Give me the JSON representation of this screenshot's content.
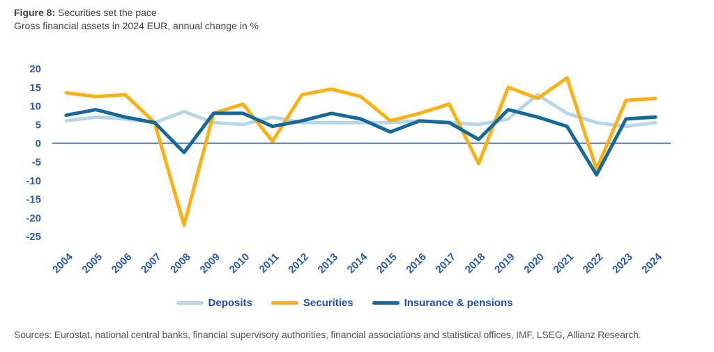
{
  "header": {
    "figure_label": "Figure 8:",
    "title": "Securities set the pace",
    "subtitle": "Gross financial assets in 2024 EUR, annual change in %"
  },
  "footer": {
    "sources": "Sources: Eurostat, national central banks, financial supervisory authorities, financial associations and statistical offices, IMF, LSEG, Allianz Research."
  },
  "chart_data": {
    "type": "line",
    "title": "Figure 8: Securities set the pace",
    "subtitle": "Gross financial assets in 2024 EUR, annual change in %",
    "categories": [
      2004,
      2005,
      2006,
      2007,
      2008,
      2009,
      2010,
      2011,
      2012,
      2013,
      2014,
      2015,
      2016,
      2017,
      2018,
      2019,
      2020,
      2021,
      2022,
      2023,
      2024
    ],
    "series": [
      {
        "name": "Deposits",
        "color": "#B7D7E6",
        "values": [
          6,
          7,
          6.5,
          5.5,
          8.5,
          5.5,
          5,
          7,
          5.5,
          5.5,
          5.5,
          5.5,
          6,
          5.5,
          5,
          6.5,
          13,
          8,
          5.5,
          4.5,
          5.5
        ]
      },
      {
        "name": "Securities",
        "color": "#F9B114",
        "values": [
          13.5,
          12.5,
          13,
          5.5,
          -22,
          8,
          10.5,
          0.5,
          13,
          14.5,
          12.5,
          6,
          8,
          10.5,
          -5.5,
          15,
          12,
          17.5,
          -7,
          11.5,
          12
        ]
      },
      {
        "name": "Insurance & pensions",
        "color": "#16689D",
        "values": [
          7.5,
          9,
          7,
          5.5,
          -2.5,
          8,
          8,
          4.5,
          6,
          8,
          6.5,
          3,
          6,
          5.5,
          1,
          9,
          7,
          4.5,
          -8.5,
          6.5,
          7
        ]
      }
    ],
    "xlabel": "",
    "ylabel": "",
    "ylim": [
      -25,
      20
    ],
    "y_ticks": [
      20,
      15,
      10,
      5,
      0,
      -5,
      -10,
      -15,
      -20,
      -25
    ],
    "grid": false,
    "legend_position": "bottom",
    "axis_color": "#2A5CA8",
    "zero_line_color": "#2A5CA8"
  }
}
